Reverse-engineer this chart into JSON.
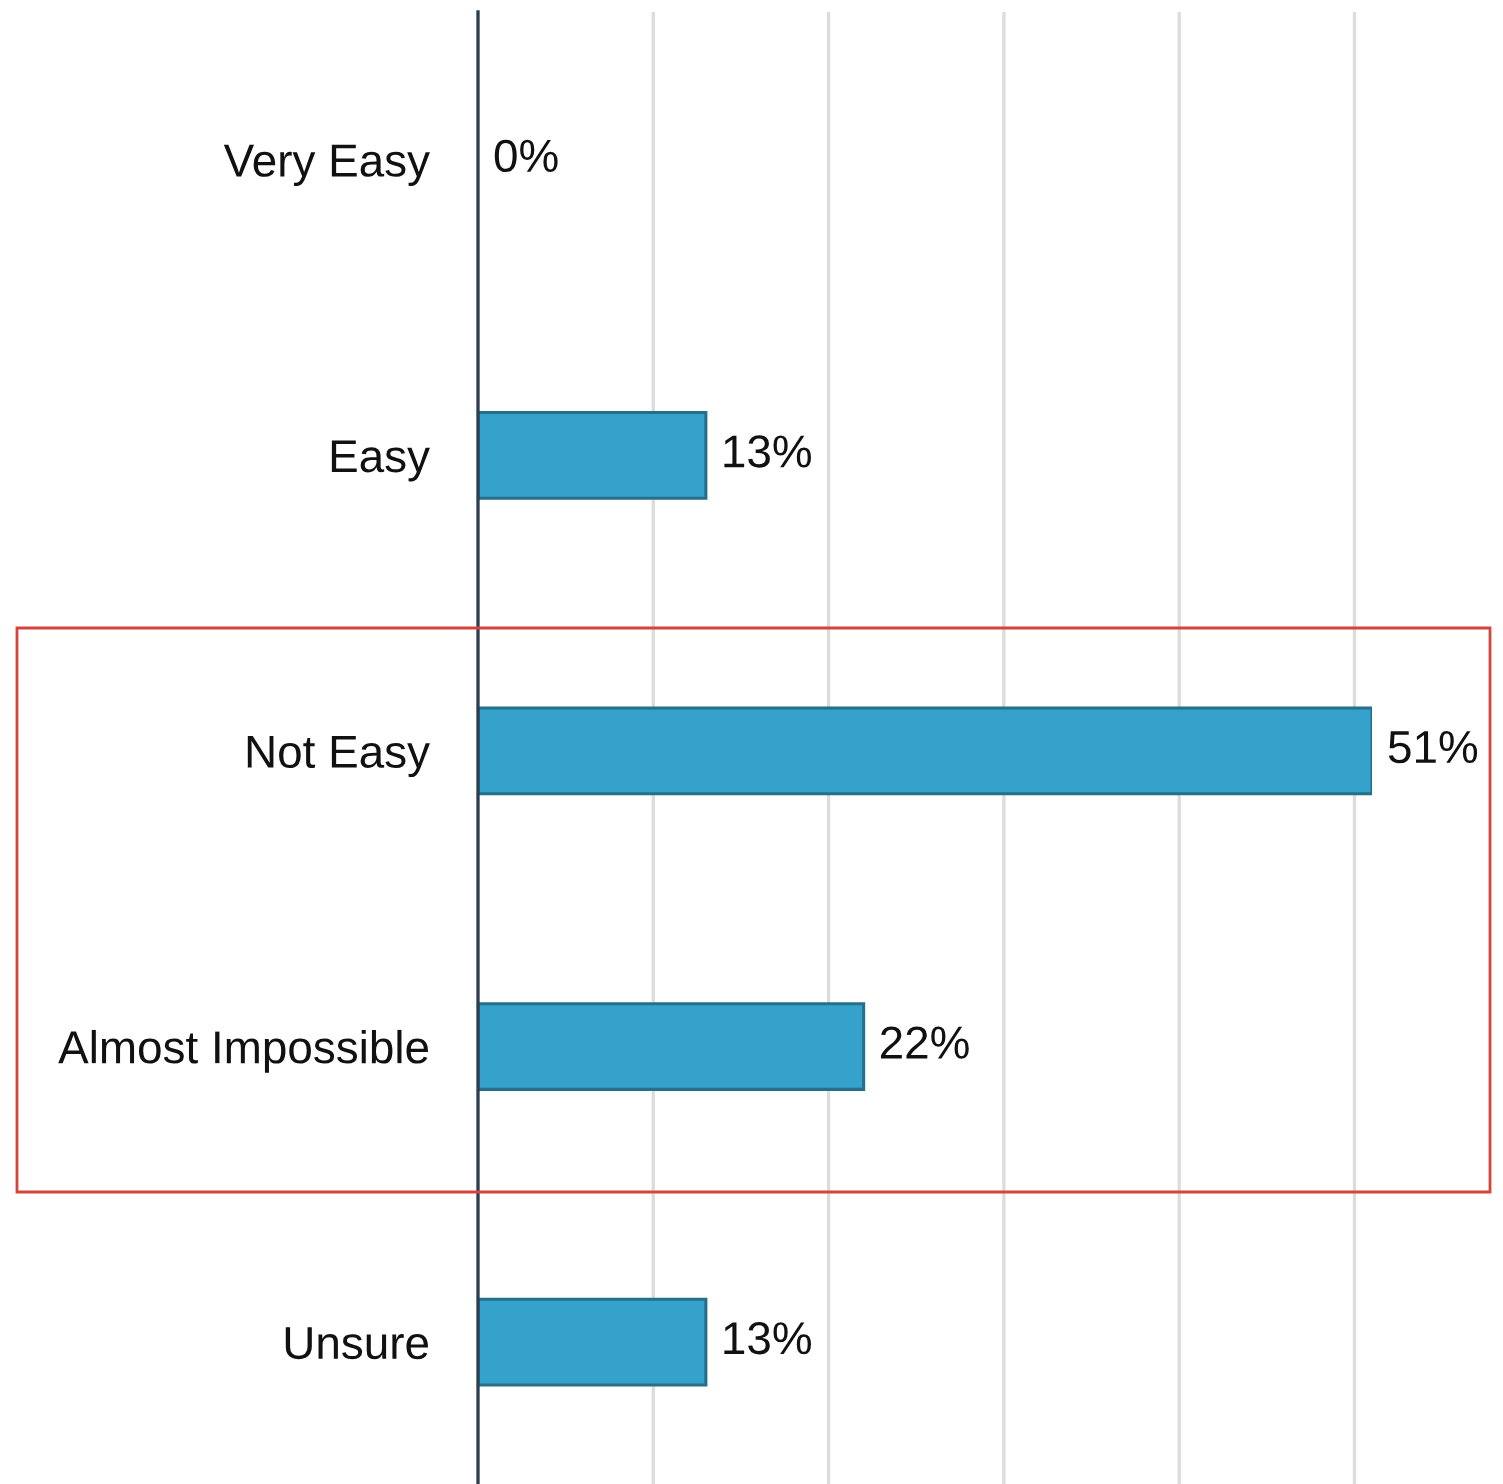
{
  "chart_data": {
    "type": "bar",
    "orientation": "horizontal",
    "categories": [
      "Very Easy",
      "Easy",
      "Not Easy",
      "Almost Impossible",
      "Unsure"
    ],
    "values": [
      0,
      13,
      51,
      22,
      13
    ],
    "value_labels": [
      "0%",
      "13%",
      "51%",
      "22%",
      "13%"
    ],
    "color": "#35a2cb",
    "xticks": [
      {
        "value": 10,
        "label": null
      },
      {
        "value": 20,
        "label": null
      },
      {
        "value": 30,
        "label": null
      },
      {
        "value": 40,
        "label": null
      },
      {
        "value": 50,
        "label": null
      }
    ],
    "grid": "x",
    "tick_labels": "y",
    "legend": false
  }
}
